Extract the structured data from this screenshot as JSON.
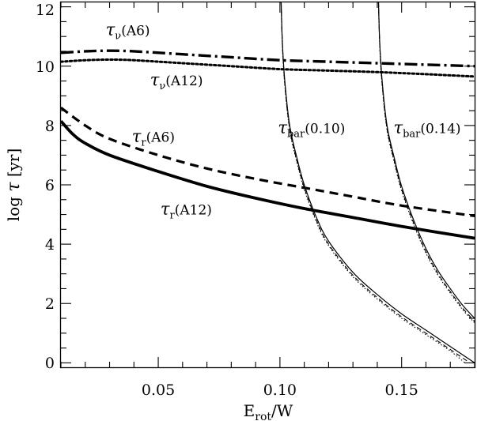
{
  "chart_data": {
    "type": "line",
    "xlabel_main": "E",
    "xlabel_sub": "rot",
    "xlabel_rest": "/W",
    "ylabel_prefix": "log ",
    "ylabel_symbol": "τ",
    "ylabel_unit": " [yr]",
    "xlim": [
      0.01,
      0.18
    ],
    "ylim": [
      -0.15,
      12.15
    ],
    "x_ticks": [
      {
        "value": 0.05,
        "label": "0.05"
      },
      {
        "value": 0.1,
        "label": "0.10"
      },
      {
        "value": 0.15,
        "label": "0.15"
      }
    ],
    "y_ticks": [
      {
        "value": 0,
        "label": "0"
      },
      {
        "value": 2,
        "label": "2"
      },
      {
        "value": 4,
        "label": "4"
      },
      {
        "value": 6,
        "label": "6"
      },
      {
        "value": 8,
        "label": "8"
      },
      {
        "value": 10,
        "label": "10"
      },
      {
        "value": 12,
        "label": "12"
      }
    ],
    "series": [
      {
        "key": "tau_nu_A6",
        "style": "dashdot",
        "width": 3.4,
        "x": [
          0.01,
          0.02,
          0.03,
          0.04,
          0.06,
          0.08,
          0.1,
          0.12,
          0.14,
          0.16,
          0.18
        ],
        "y": [
          10.45,
          10.5,
          10.52,
          10.5,
          10.4,
          10.3,
          10.2,
          10.15,
          10.1,
          10.05,
          10.0
        ]
      },
      {
        "key": "tau_nu_A12",
        "style": "dotted",
        "width": 3.0,
        "x": [
          0.01,
          0.02,
          0.03,
          0.04,
          0.06,
          0.08,
          0.1,
          0.12,
          0.14,
          0.16,
          0.18
        ],
        "y": [
          10.15,
          10.2,
          10.22,
          10.2,
          10.1,
          10.0,
          9.9,
          9.85,
          9.8,
          9.73,
          9.65
        ]
      },
      {
        "key": "tau_r_A6",
        "style": "dashed",
        "width": 3.2,
        "x": [
          0.01,
          0.02,
          0.03,
          0.05,
          0.07,
          0.09,
          0.11,
          0.13,
          0.15,
          0.18
        ],
        "y": [
          8.6,
          8.0,
          7.55,
          7.0,
          6.55,
          6.2,
          5.9,
          5.6,
          5.3,
          4.95
        ]
      },
      {
        "key": "tau_r_A12",
        "style": "solid",
        "width": 3.8,
        "x": [
          0.01,
          0.015,
          0.02,
          0.03,
          0.05,
          0.07,
          0.09,
          0.11,
          0.13,
          0.15,
          0.18
        ],
        "y": [
          8.15,
          7.7,
          7.4,
          7.0,
          6.45,
          5.95,
          5.55,
          5.2,
          4.9,
          4.6,
          4.2
        ]
      },
      {
        "key": "tau_bar_010_a",
        "style": "solid",
        "width": 1.2,
        "x": [
          0.1005,
          0.101,
          0.102,
          0.104,
          0.107,
          0.11,
          0.115,
          0.12,
          0.13,
          0.14,
          0.15,
          0.16,
          0.17,
          0.18
        ],
        "y": [
          12.15,
          10.8,
          9.5,
          8.0,
          6.9,
          6.0,
          4.9,
          4.1,
          3.05,
          2.3,
          1.65,
          1.1,
          0.55,
          0.0
        ]
      },
      {
        "key": "tau_bar_010_b",
        "style": "dashed-thin",
        "width": 1.1,
        "x": [
          0.1005,
          0.101,
          0.102,
          0.104,
          0.107,
          0.11,
          0.115,
          0.12,
          0.13,
          0.14,
          0.15,
          0.16,
          0.17,
          0.178
        ],
        "y": [
          12.15,
          10.75,
          9.4,
          7.9,
          6.8,
          5.9,
          4.8,
          4.0,
          2.95,
          2.2,
          1.55,
          1.0,
          0.45,
          0.0
        ]
      },
      {
        "key": "tau_bar_010_c",
        "style": "dotted-thin",
        "width": 1.1,
        "x": [
          0.1005,
          0.101,
          0.102,
          0.104,
          0.107,
          0.11,
          0.115,
          0.12,
          0.13,
          0.14,
          0.15,
          0.16,
          0.17,
          0.176
        ],
        "y": [
          12.15,
          10.7,
          9.35,
          7.85,
          6.75,
          5.85,
          4.75,
          3.95,
          2.9,
          2.15,
          1.5,
          0.95,
          0.4,
          0.0
        ]
      },
      {
        "key": "tau_bar_014_a",
        "style": "solid",
        "width": 1.2,
        "x": [
          0.1405,
          0.141,
          0.142,
          0.144,
          0.147,
          0.15,
          0.155,
          0.16,
          0.165,
          0.17,
          0.175,
          0.18
        ],
        "y": [
          12.15,
          10.8,
          9.5,
          8.0,
          6.9,
          5.95,
          4.8,
          3.85,
          3.1,
          2.5,
          1.95,
          1.5
        ]
      },
      {
        "key": "tau_bar_014_b",
        "style": "dashed-thin",
        "width": 1.1,
        "x": [
          0.1405,
          0.141,
          0.142,
          0.144,
          0.147,
          0.15,
          0.155,
          0.16,
          0.165,
          0.17,
          0.175,
          0.18
        ],
        "y": [
          12.15,
          10.75,
          9.4,
          7.9,
          6.8,
          5.85,
          4.7,
          3.75,
          3.0,
          2.4,
          1.85,
          1.4
        ]
      },
      {
        "key": "tau_bar_014_c",
        "style": "dotted-thin",
        "width": 1.1,
        "x": [
          0.1405,
          0.141,
          0.142,
          0.144,
          0.147,
          0.15,
          0.155,
          0.16,
          0.165,
          0.17,
          0.175,
          0.18
        ],
        "y": [
          12.15,
          10.7,
          9.35,
          7.85,
          6.75,
          5.8,
          4.65,
          3.7,
          2.95,
          2.35,
          1.8,
          1.35
        ]
      }
    ],
    "annotations": [
      {
        "key": "ann_nu_a6",
        "symbol": "τ",
        "sub": "ν",
        "text": "(A6)",
        "x": 0.0375,
        "y": 11.05
      },
      {
        "key": "ann_nu_a12",
        "symbol": "τ",
        "sub": "ν",
        "text": "(A12)",
        "x": 0.0575,
        "y": 9.35
      },
      {
        "key": "ann_r_a6",
        "symbol": "τ",
        "sub": "r",
        "text": "(A6)",
        "x": 0.048,
        "y": 7.45
      },
      {
        "key": "ann_r_a12",
        "symbol": "τ",
        "sub": "r",
        "text": "(A12)",
        "x": 0.0615,
        "y": 5.0
      },
      {
        "key": "ann_bar_010",
        "symbol": "τ",
        "sub": "bar",
        "text": "(0.10)",
        "x": 0.113,
        "y": 7.75
      },
      {
        "key": "ann_bar_014",
        "symbol": "τ",
        "sub": "bar",
        "text": "(0.14)",
        "x": 0.1605,
        "y": 7.75
      }
    ]
  }
}
